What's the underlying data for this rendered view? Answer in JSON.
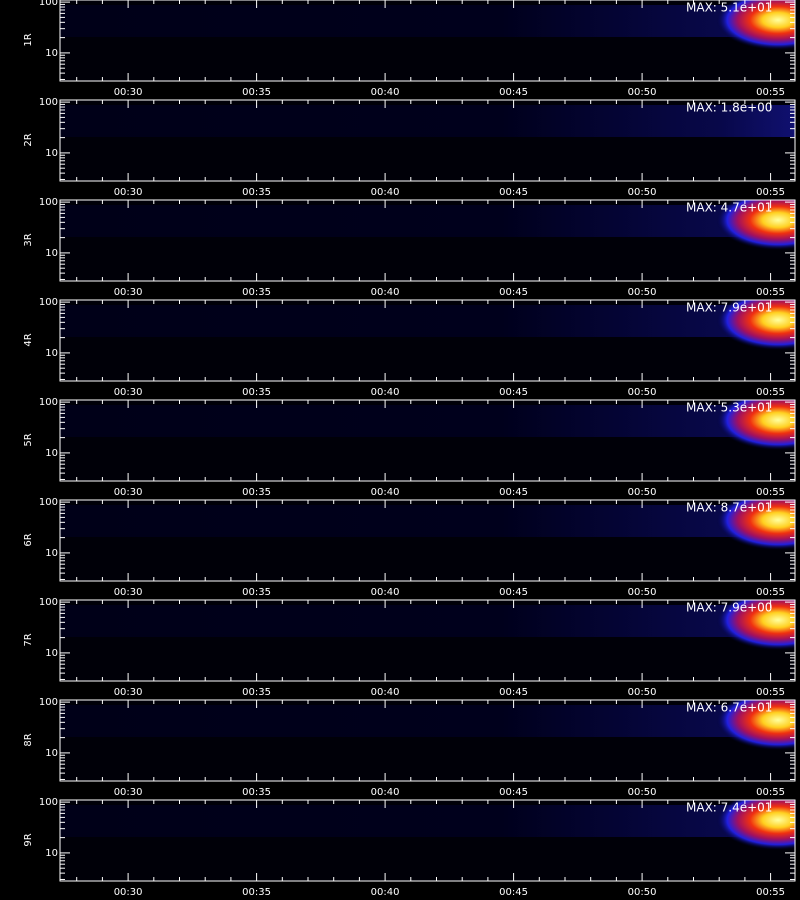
{
  "chart_data": [
    {
      "type": "spectrogram",
      "ylabel": "1R",
      "annotation": "MAX: 5.1e+01",
      "log_y": true,
      "ylim": [
        2.8,
        110
      ],
      "yticks": [
        10,
        100
      ],
      "yminor_ticks": [
        3,
        4,
        5,
        6,
        7,
        8,
        9,
        20,
        30,
        40,
        50,
        60,
        70,
        80,
        90
      ],
      "xlim": [
        27.35,
        55.95
      ],
      "xticks": [
        {
          "value": 30,
          "label": "00:30"
        },
        {
          "value": 35,
          "label": "00:35"
        },
        {
          "value": 40,
          "label": "00:40"
        },
        {
          "value": 45,
          "label": "00:45"
        },
        {
          "value": 50,
          "label": "00:50"
        },
        {
          "value": 55,
          "label": "00:55"
        }
      ],
      "xminor_ticks": [
        28,
        29,
        31,
        32,
        33,
        34,
        36,
        37,
        38,
        39,
        41,
        42,
        43,
        44,
        46,
        47,
        48,
        49,
        51,
        52,
        53,
        54
      ]
    },
    {
      "type": "spectrogram",
      "ylabel": "2R",
      "annotation": "MAX: 1.8e+00",
      "log_y": true,
      "ylim": [
        2.8,
        110
      ],
      "yticks": [
        10,
        100
      ],
      "yminor_ticks": [
        3,
        4,
        5,
        6,
        7,
        8,
        9,
        20,
        30,
        40,
        50,
        60,
        70,
        80,
        90
      ],
      "xlim": [
        27.35,
        55.95
      ],
      "xticks": [
        {
          "value": 30,
          "label": "00:30"
        },
        {
          "value": 35,
          "label": "00:35"
        },
        {
          "value": 40,
          "label": "00:40"
        },
        {
          "value": 45,
          "label": "00:45"
        },
        {
          "value": 50,
          "label": "00:50"
        },
        {
          "value": 55,
          "label": "00:55"
        }
      ],
      "xminor_ticks": [
        28,
        29,
        31,
        32,
        33,
        34,
        36,
        37,
        38,
        39,
        41,
        42,
        43,
        44,
        46,
        47,
        48,
        49,
        51,
        52,
        53,
        54
      ]
    },
    {
      "type": "spectrogram",
      "ylabel": "3R",
      "annotation": "MAX: 4.7e+01",
      "log_y": true,
      "ylim": [
        2.8,
        110
      ],
      "yticks": [
        10,
        100
      ],
      "yminor_ticks": [
        3,
        4,
        5,
        6,
        7,
        8,
        9,
        20,
        30,
        40,
        50,
        60,
        70,
        80,
        90
      ],
      "xlim": [
        27.35,
        55.95
      ],
      "xticks": [
        {
          "value": 30,
          "label": "00:30"
        },
        {
          "value": 35,
          "label": "00:35"
        },
        {
          "value": 40,
          "label": "00:40"
        },
        {
          "value": 45,
          "label": "00:45"
        },
        {
          "value": 50,
          "label": "00:50"
        },
        {
          "value": 55,
          "label": "00:55"
        }
      ],
      "xminor_ticks": [
        28,
        29,
        31,
        32,
        33,
        34,
        36,
        37,
        38,
        39,
        41,
        42,
        43,
        44,
        46,
        47,
        48,
        49,
        51,
        52,
        53,
        54
      ]
    },
    {
      "type": "spectrogram",
      "ylabel": "4R",
      "annotation": "MAX: 7.9e+01",
      "log_y": true,
      "ylim": [
        2.8,
        110
      ],
      "yticks": [
        10,
        100
      ],
      "yminor_ticks": [
        3,
        4,
        5,
        6,
        7,
        8,
        9,
        20,
        30,
        40,
        50,
        60,
        70,
        80,
        90
      ],
      "xlim": [
        27.35,
        55.95
      ],
      "xticks": [
        {
          "value": 30,
          "label": "00:30"
        },
        {
          "value": 35,
          "label": "00:35"
        },
        {
          "value": 40,
          "label": "00:40"
        },
        {
          "value": 45,
          "label": "00:45"
        },
        {
          "value": 50,
          "label": "00:50"
        },
        {
          "value": 55,
          "label": "00:55"
        }
      ],
      "xminor_ticks": [
        28,
        29,
        31,
        32,
        33,
        34,
        36,
        37,
        38,
        39,
        41,
        42,
        43,
        44,
        46,
        47,
        48,
        49,
        51,
        52,
        53,
        54
      ]
    },
    {
      "type": "spectrogram",
      "ylabel": "5R",
      "annotation": "MAX: 5.3e+01",
      "log_y": true,
      "ylim": [
        2.8,
        110
      ],
      "yticks": [
        10,
        100
      ],
      "yminor_ticks": [
        3,
        4,
        5,
        6,
        7,
        8,
        9,
        20,
        30,
        40,
        50,
        60,
        70,
        80,
        90
      ],
      "xlim": [
        27.35,
        55.95
      ],
      "xticks": [
        {
          "value": 30,
          "label": "00:30"
        },
        {
          "value": 35,
          "label": "00:35"
        },
        {
          "value": 40,
          "label": "00:40"
        },
        {
          "value": 45,
          "label": "00:45"
        },
        {
          "value": 50,
          "label": "00:50"
        },
        {
          "value": 55,
          "label": "00:55"
        }
      ],
      "xminor_ticks": [
        28,
        29,
        31,
        32,
        33,
        34,
        36,
        37,
        38,
        39,
        41,
        42,
        43,
        44,
        46,
        47,
        48,
        49,
        51,
        52,
        53,
        54
      ]
    },
    {
      "type": "spectrogram",
      "ylabel": "6R",
      "annotation": "MAX: 8.7e+01",
      "log_y": true,
      "ylim": [
        2.8,
        110
      ],
      "yticks": [
        10,
        100
      ],
      "yminor_ticks": [
        3,
        4,
        5,
        6,
        7,
        8,
        9,
        20,
        30,
        40,
        50,
        60,
        70,
        80,
        90
      ],
      "xlim": [
        27.35,
        55.95
      ],
      "xticks": [
        {
          "value": 30,
          "label": "00:30"
        },
        {
          "value": 35,
          "label": "00:35"
        },
        {
          "value": 40,
          "label": "00:40"
        },
        {
          "value": 45,
          "label": "00:45"
        },
        {
          "value": 50,
          "label": "00:50"
        },
        {
          "value": 55,
          "label": "00:55"
        }
      ],
      "xminor_ticks": [
        28,
        29,
        31,
        32,
        33,
        34,
        36,
        37,
        38,
        39,
        41,
        42,
        43,
        44,
        46,
        47,
        48,
        49,
        51,
        52,
        53,
        54
      ]
    },
    {
      "type": "spectrogram",
      "ylabel": "7R",
      "annotation": "MAX: 7.9e+00",
      "log_y": true,
      "ylim": [
        2.8,
        110
      ],
      "yticks": [
        10,
        100
      ],
      "yminor_ticks": [
        3,
        4,
        5,
        6,
        7,
        8,
        9,
        20,
        30,
        40,
        50,
        60,
        70,
        80,
        90
      ],
      "xlim": [
        27.35,
        55.95
      ],
      "xticks": [
        {
          "value": 30,
          "label": "00:30"
        },
        {
          "value": 35,
          "label": "00:35"
        },
        {
          "value": 40,
          "label": "00:40"
        },
        {
          "value": 45,
          "label": "00:45"
        },
        {
          "value": 50,
          "label": "00:50"
        },
        {
          "value": 55,
          "label": "00:55"
        }
      ],
      "xminor_ticks": [
        28,
        29,
        31,
        32,
        33,
        34,
        36,
        37,
        38,
        39,
        41,
        42,
        43,
        44,
        46,
        47,
        48,
        49,
        51,
        52,
        53,
        54
      ]
    },
    {
      "type": "spectrogram",
      "ylabel": "8R",
      "annotation": "MAX: 6.7e+01",
      "log_y": true,
      "ylim": [
        2.8,
        110
      ],
      "yticks": [
        10,
        100
      ],
      "yminor_ticks": [
        3,
        4,
        5,
        6,
        7,
        8,
        9,
        20,
        30,
        40,
        50,
        60,
        70,
        80,
        90
      ],
      "xlim": [
        27.35,
        55.95
      ],
      "xticks": [
        {
          "value": 30,
          "label": "00:30"
        },
        {
          "value": 35,
          "label": "00:35"
        },
        {
          "value": 40,
          "label": "00:40"
        },
        {
          "value": 45,
          "label": "00:45"
        },
        {
          "value": 50,
          "label": "00:50"
        },
        {
          "value": 55,
          "label": "00:55"
        }
      ],
      "xminor_ticks": [
        28,
        29,
        31,
        32,
        33,
        34,
        36,
        37,
        38,
        39,
        41,
        42,
        43,
        44,
        46,
        47,
        48,
        49,
        51,
        52,
        53,
        54
      ]
    },
    {
      "type": "spectrogram",
      "ylabel": "9R",
      "annotation": "MAX: 7.4e+01",
      "log_y": true,
      "ylim": [
        2.8,
        110
      ],
      "yticks": [
        10,
        100
      ],
      "yminor_ticks": [
        3,
        4,
        5,
        6,
        7,
        8,
        9,
        20,
        30,
        40,
        50,
        60,
        70,
        80,
        90
      ],
      "xlim": [
        27.35,
        55.95
      ],
      "xticks": [
        {
          "value": 30,
          "label": "00:30"
        },
        {
          "value": 35,
          "label": "00:35"
        },
        {
          "value": 40,
          "label": "00:40"
        },
        {
          "value": 45,
          "label": "00:45"
        },
        {
          "value": 50,
          "label": "00:50"
        },
        {
          "value": 55,
          "label": "00:55"
        }
      ],
      "xminor_ticks": [
        28,
        29,
        31,
        32,
        33,
        34,
        36,
        37,
        38,
        39,
        41,
        42,
        43,
        44,
        46,
        47,
        48,
        49,
        51,
        52,
        53,
        54
      ]
    }
  ]
}
